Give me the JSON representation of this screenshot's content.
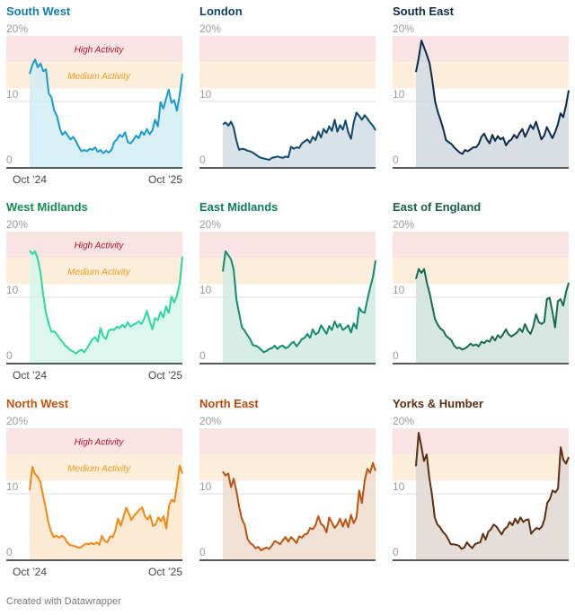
{
  "chart_data": {
    "type": "area",
    "layout": "small-multiples 3x3",
    "y_unit": "%",
    "ylim": [
      0,
      20
    ],
    "y_ticks": [
      0,
      10,
      20
    ],
    "y_tick_labels": [
      "0",
      "10",
      "20%"
    ],
    "x_tick_labels": [
      "Oct ’24",
      "Oct ’25"
    ],
    "x_range": [
      "Oct 2024",
      "Nov 2025"
    ],
    "x_label_rows": [
      0
    ],
    "bands": [
      {
        "label": "High Activity",
        "from": 16,
        "to": 20,
        "fill": "#f7e4e3",
        "text_color": "#b5112b"
      },
      {
        "label": "Medium Activity",
        "from": 12,
        "to": 16,
        "fill": "#fdeedc",
        "text_color": "#ef9a1a"
      }
    ],
    "band_label_panels": [
      "South West",
      "West Midlands",
      "North West"
    ],
    "panels": [
      {
        "name": "South West",
        "color": "#1a9ac9",
        "fill": "#d2ecf5",
        "title_color": "#147aa8",
        "values": [
          14.2,
          15.6,
          16.4,
          15.2,
          15.8,
          14.6,
          14.9,
          11.2,
          10.6,
          8.6,
          7.8,
          6.0,
          4.9,
          5.4,
          4.8,
          4.2,
          4.6,
          3.9,
          3.1,
          2.4,
          2.6,
          2.4,
          2.8,
          2.6,
          3.0,
          2.3,
          2.6,
          2.1,
          2.5,
          2.2,
          2.6,
          3.8,
          4.2,
          4.9,
          4.6,
          5.3,
          3.8,
          3.6,
          4.1,
          4.8,
          4.4,
          5.4,
          4.9,
          5.8,
          5.0,
          5.6,
          7.2,
          6.2,
          9.9,
          8.9,
          10.4,
          11.8,
          9.8,
          10.2,
          8.6,
          11.0,
          14.2
        ]
      },
      {
        "name": "London",
        "color": "#0f4a6b",
        "fill": "#d2dde4",
        "title_color": "#0d4468",
        "values": [
          6.5,
          6.8,
          6.3,
          6.9,
          6.0,
          4.0,
          2.6,
          2.8,
          2.7,
          2.5,
          2.4,
          2.2,
          1.9,
          1.6,
          1.4,
          1.3,
          1.2,
          1.1,
          1.4,
          1.5,
          1.6,
          1.5,
          1.4,
          1.6,
          1.5,
          3.1,
          2.8,
          3.0,
          2.9,
          3.6,
          3.9,
          4.2,
          3.7,
          4.6,
          4.1,
          5.4,
          4.5,
          5.8,
          5.2,
          6.2,
          5.5,
          7.2,
          5.4,
          6.4,
          5.7,
          7.1,
          5.3,
          4.3,
          6.8,
          8.3,
          7.8,
          7.2,
          7.9,
          7.4,
          6.8,
          6.3,
          5.6
        ]
      },
      {
        "name": "South East",
        "color": "#0d2b49",
        "fill": "#d0d9e0",
        "title_color": "#0e2a47",
        "values": [
          14.5,
          16.6,
          19.3,
          18.2,
          17.1,
          15.8,
          13.2,
          10.0,
          8.4,
          7.2,
          5.8,
          4.1,
          3.8,
          3.5,
          3.0,
          2.6,
          2.2,
          2.0,
          2.6,
          2.4,
          2.7,
          3.0,
          3.0,
          3.5,
          4.6,
          5.1,
          4.2,
          3.6,
          4.9,
          4.0,
          4.7,
          4.2,
          4.5,
          3.3,
          3.9,
          4.2,
          4.9,
          4.4,
          5.2,
          5.8,
          4.6,
          5.5,
          6.4,
          5.8,
          6.9,
          5.6,
          4.2,
          4.8,
          6.1,
          5.2,
          4.4,
          5.3,
          6.5,
          8.2,
          7.6,
          9.4,
          11.7
        ]
      },
      {
        "name": "West Midlands",
        "color": "#2ed69f",
        "fill": "#d5f6eb",
        "title_color": "#138a55",
        "values": [
          17.1,
          16.6,
          17.0,
          15.8,
          13.7,
          10.3,
          7.6,
          5.9,
          4.7,
          4.8,
          4.3,
          3.7,
          3.2,
          2.6,
          2.3,
          1.9,
          1.7,
          1.4,
          1.8,
          2.0,
          1.6,
          2.2,
          2.9,
          3.6,
          3.9,
          3.2,
          5.3,
          4.0,
          3.6,
          4.9,
          5.1,
          5.0,
          5.5,
          5.3,
          5.8,
          5.4,
          6.2,
          5.5,
          5.8,
          6.0,
          6.3,
          5.9,
          6.7,
          7.9,
          6.4,
          5.1,
          6.8,
          6.5,
          7.8,
          6.9,
          8.6,
          7.6,
          10.1,
          9.2,
          10.2,
          12.1,
          16.2
        ]
      },
      {
        "name": "East Midlands",
        "color": "#138b6e",
        "fill": "#d1eae2",
        "title_color": "#117a5e",
        "values": [
          13.9,
          17.0,
          16.4,
          15.8,
          14.2,
          9.6,
          7.5,
          5.4,
          4.9,
          4.2,
          3.6,
          2.7,
          2.6,
          2.4,
          2.0,
          1.6,
          1.8,
          2.1,
          2.2,
          2.6,
          2.1,
          2.5,
          2.6,
          2.2,
          2.4,
          2.9,
          3.2,
          2.5,
          3.0,
          3.6,
          3.8,
          4.4,
          3.8,
          5.1,
          4.3,
          4.6,
          5.7,
          5.1,
          4.4,
          5.6,
          5.0,
          6.3,
          5.4,
          5.9,
          5.0,
          5.3,
          5.7,
          4.6,
          6.0,
          5.2,
          8.4,
          7.8,
          7.6,
          9.6,
          11.4,
          13.0,
          15.6
        ]
      },
      {
        "name": "East of England",
        "color": "#176a52",
        "fill": "#d1e2dc",
        "title_color": "#1a5e48",
        "values": [
          12.8,
          14.3,
          13.7,
          14.3,
          12.2,
          10.6,
          8.6,
          6.6,
          5.8,
          5.2,
          4.9,
          4.1,
          3.8,
          3.4,
          2.6,
          2.2,
          2.3,
          2.0,
          2.2,
          2.5,
          2.9,
          2.6,
          2.8,
          2.5,
          3.2,
          3.0,
          3.4,
          3.2,
          4.0,
          3.4,
          4.2,
          3.8,
          4.4,
          5.1,
          4.3,
          4.0,
          4.3,
          4.6,
          5.2,
          4.7,
          5.9,
          4.9,
          4.4,
          5.5,
          7.4,
          6.2,
          5.9,
          6.2,
          9.7,
          9.9,
          7.8,
          5.4,
          9.4,
          9.7,
          8.7,
          10.8,
          12.2
        ]
      },
      {
        "name": "North West",
        "color": "#f08a12",
        "fill": "#fde6cc",
        "title_color": "#c05410",
        "values": [
          10.5,
          14.1,
          13.0,
          12.6,
          11.8,
          9.8,
          7.8,
          5.6,
          4.2,
          3.4,
          3.6,
          3.3,
          3.6,
          3.3,
          2.6,
          2.2,
          2.1,
          2.0,
          1.8,
          1.8,
          2.1,
          2.4,
          2.3,
          2.5,
          2.3,
          2.6,
          2.2,
          3.6,
          2.8,
          2.6,
          3.5,
          3.4,
          4.4,
          6.2,
          5.1,
          6.4,
          7.9,
          7.0,
          6.0,
          6.7,
          7.1,
          7.6,
          7.9,
          6.6,
          6.1,
          6.7,
          5.1,
          5.3,
          6.4,
          5.8,
          6.6,
          4.7,
          8.2,
          9.1,
          8.8,
          11.3,
          14.3,
          13.1
        ]
      },
      {
        "name": "North East",
        "color": "#b85412",
        "fill": "#eedbcd",
        "title_color": "#b34a0f",
        "values": [
          13.4,
          12.8,
          13.1,
          11.0,
          12.3,
          10.4,
          8.0,
          6.1,
          5.3,
          3.2,
          2.5,
          2.2,
          1.7,
          1.9,
          1.4,
          1.6,
          1.8,
          1.6,
          2.1,
          2.8,
          2.6,
          2.3,
          2.9,
          3.4,
          2.7,
          3.4,
          3.0,
          2.5,
          3.5,
          3.3,
          3.8,
          3.9,
          4.8,
          4.6,
          5.2,
          6.6,
          5.4,
          5.1,
          4.1,
          6.4,
          5.6,
          4.8,
          5.3,
          6.2,
          5.0,
          6.1,
          4.9,
          6.8,
          5.5,
          6.4,
          10.5,
          8.6,
          12.0,
          13.8,
          13.2,
          14.7,
          13.5
        ]
      },
      {
        "name": "Yorks & Humber",
        "color": "#5a2f14",
        "fill": "#e0d7d1",
        "title_color": "#5b2e12",
        "values": [
          14.2,
          19.3,
          17.2,
          15.0,
          16.0,
          12.4,
          9.8,
          6.4,
          5.3,
          4.9,
          4.2,
          3.8,
          3.1,
          2.3,
          2.3,
          2.2,
          2.1,
          1.6,
          1.8,
          2.6,
          2.1,
          1.7,
          2.3,
          2.5,
          2.6,
          3.9,
          3.0,
          4.2,
          4.6,
          5.3,
          5.0,
          4.4,
          3.8,
          4.6,
          4.9,
          5.7,
          5.2,
          6.2,
          5.5,
          6.4,
          5.7,
          6.0,
          6.1,
          3.9,
          4.4,
          4.8,
          4.6,
          5.0,
          6.2,
          8.6,
          9.2,
          10.5,
          10.2,
          10.8,
          17.1,
          15.2,
          14.6,
          15.6
        ]
      }
    ]
  },
  "footer": {
    "credit": "Created with Datawrapper"
  }
}
